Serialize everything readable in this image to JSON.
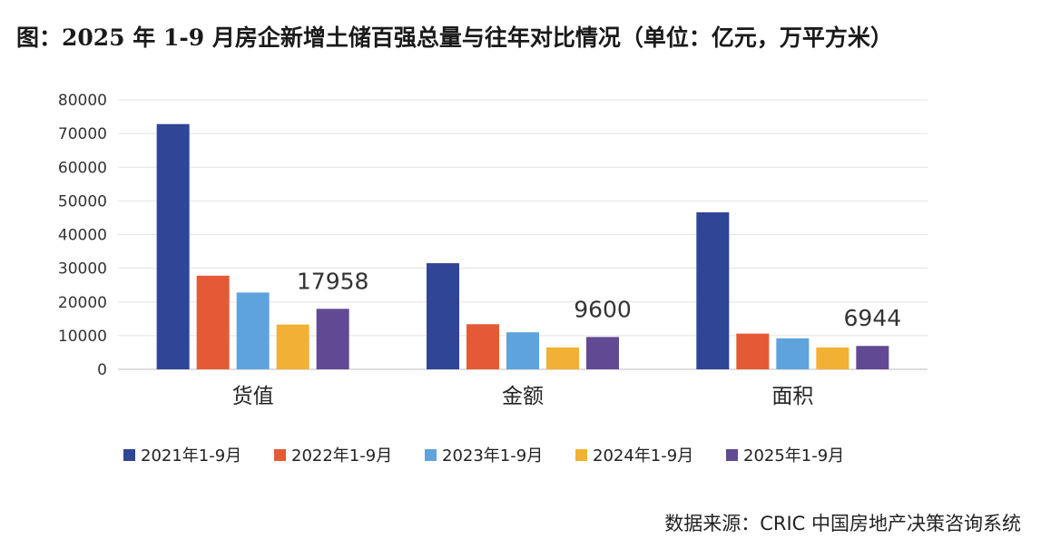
{
  "chart_data": {
    "type": "bar",
    "title": "图：2025 年 1-9 月房企新增土储百强总量与往年对比情况（单位：亿元，万平方米）",
    "categories": [
      "货值",
      "金额",
      "面积"
    ],
    "series": [
      {
        "name": "2021年1-9月",
        "color": "#2f4596",
        "values": [
          72800,
          31500,
          46600
        ]
      },
      {
        "name": "2022年1-9月",
        "color": "#e45a36",
        "values": [
          27800,
          13400,
          10600
        ]
      },
      {
        "name": "2023年1-9月",
        "color": "#5fa3dd",
        "values": [
          22800,
          11000,
          9200
        ]
      },
      {
        "name": "2024年1-9月",
        "color": "#f1b134",
        "values": [
          13300,
          6500,
          6500
        ]
      },
      {
        "name": "2025年1-9月",
        "color": "#614a93",
        "values": [
          17958,
          9600,
          6944
        ]
      }
    ],
    "data_labels": [
      {
        "series": 4,
        "category": 0,
        "text": "17958"
      },
      {
        "series": 4,
        "category": 1,
        "text": "9600"
      },
      {
        "series": 4,
        "category": 2,
        "text": "6944"
      }
    ],
    "ylim": [
      0,
      80000
    ],
    "yticks": [
      0,
      10000,
      20000,
      30000,
      40000,
      50000,
      60000,
      70000,
      80000
    ],
    "ytick_labels": [
      "0",
      "10000",
      "20000",
      "30000",
      "40000",
      "50000",
      "60000",
      "70000",
      "80000"
    ],
    "grid": true,
    "legend": "bottom",
    "xlabel": "",
    "ylabel": ""
  },
  "source": "数据来源：CRIC 中国房地产决策咨询系统"
}
